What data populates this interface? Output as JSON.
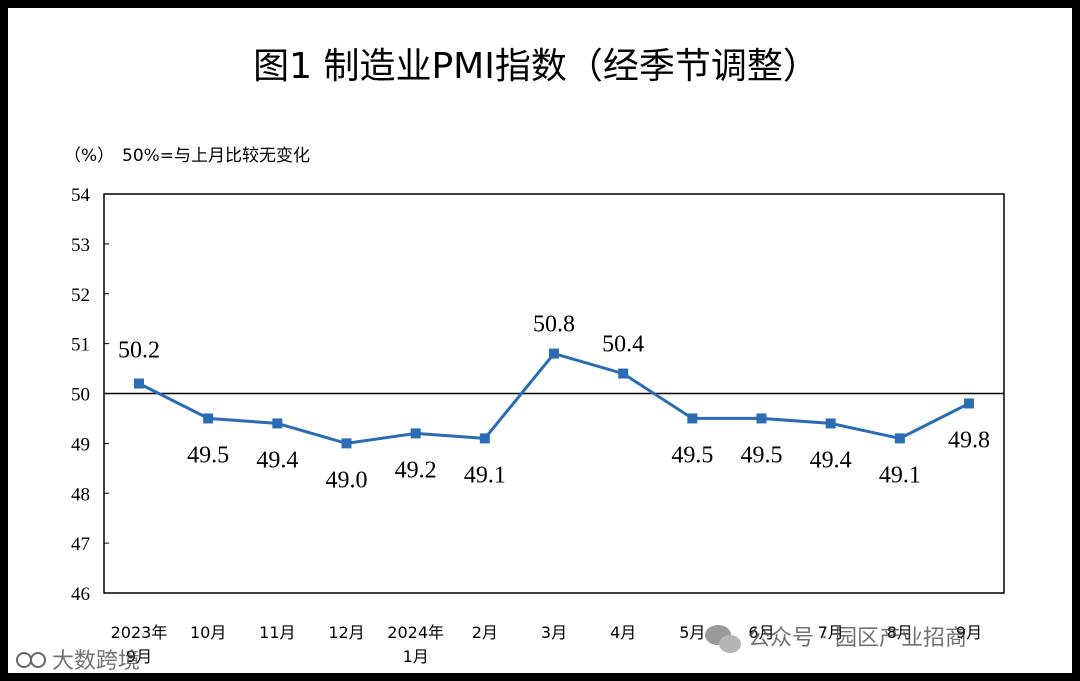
{
  "chart_data": {
    "type": "line",
    "title": "图1  制造业PMI指数（经季节调整）",
    "unit_label": "（%）",
    "reference_note": "50%=与上月比较无变化",
    "reference_value": 50,
    "categories": [
      "2023年 9月",
      "10月",
      "11月",
      "12月",
      "2024年 1月",
      "2月",
      "3月",
      "4月",
      "5月",
      "6月",
      "7月",
      "8月",
      "9月"
    ],
    "category_lines": [
      [
        "2023年",
        "9月"
      ],
      [
        "10月"
      ],
      [
        "11月"
      ],
      [
        "12月"
      ],
      [
        "2024年",
        "1月"
      ],
      [
        "2月"
      ],
      [
        "3月"
      ],
      [
        "4月"
      ],
      [
        "5月"
      ],
      [
        "6月"
      ],
      [
        "7月"
      ],
      [
        "8月"
      ],
      [
        "9月"
      ]
    ],
    "series": [
      {
        "name": "制造业PMI指数",
        "values": [
          50.2,
          49.5,
          49.4,
          49.0,
          49.2,
          49.1,
          50.8,
          50.4,
          49.5,
          49.5,
          49.4,
          49.1,
          49.8
        ],
        "labels": [
          "50.2",
          "49.5",
          "49.4",
          "49.0",
          "49.2",
          "49.1",
          "50.8",
          "50.4",
          "49.5",
          "49.5",
          "49.4",
          "49.1",
          "49.8"
        ]
      }
    ],
    "y_ticks": [
      "46",
      "47",
      "48",
      "49",
      "50",
      "51",
      "52",
      "53",
      "54"
    ],
    "ylim": [
      46,
      54
    ],
    "grid": false,
    "line_color": "#2b6cb4"
  },
  "watermarks": {
    "left": "大数跨境",
    "right": "公众号 · 园区产业招商"
  }
}
